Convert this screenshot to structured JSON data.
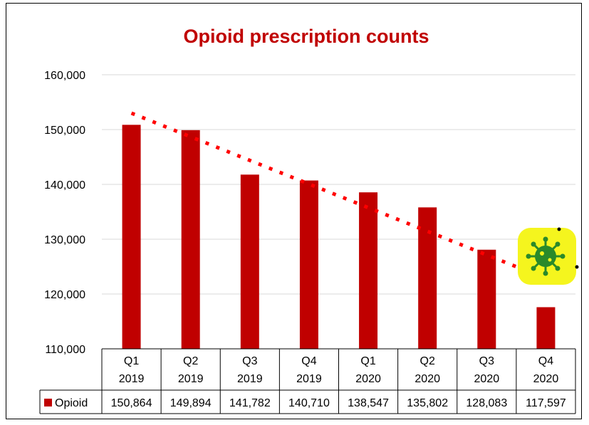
{
  "chart_data": {
    "type": "bar",
    "title": "Opioid prescription counts",
    "xlabel": "",
    "ylabel": "",
    "ylim": [
      110000,
      160000
    ],
    "yticks": [
      "110,000",
      "120,000",
      "130,000",
      "140,000",
      "150,000",
      "160,000"
    ],
    "categories": [
      {
        "quarter": "Q1",
        "year": "2019"
      },
      {
        "quarter": "Q2",
        "year": "2019"
      },
      {
        "quarter": "Q3",
        "year": "2019"
      },
      {
        "quarter": "Q4",
        "year": "2019"
      },
      {
        "quarter": "Q1",
        "year": "2020"
      },
      {
        "quarter": "Q2",
        "year": "2020"
      },
      {
        "quarter": "Q3",
        "year": "2020"
      },
      {
        "quarter": "Q4",
        "year": "2020"
      }
    ],
    "series": [
      {
        "name": "Opioid",
        "values": [
          150864,
          149894,
          141782,
          140710,
          138547,
          135802,
          128083,
          117597
        ],
        "labels": [
          "150,864",
          "149,894",
          "141,782",
          "140,710",
          "138,547",
          "135,802",
          "128,083",
          "117,597"
        ],
        "color": "#c00000"
      }
    ],
    "trendline": {
      "type": "linear",
      "style": "dotted",
      "color": "#ff0000"
    },
    "data_table": true,
    "grid": true
  },
  "colors": {
    "bar": "#c00000",
    "title": "#c00000",
    "trend": "#ff0000",
    "grid": "#d9d9d9",
    "virus_bg": "#f5f51e",
    "virus": "#2a8a2a"
  },
  "decoration": {
    "icon": "virus-icon"
  }
}
